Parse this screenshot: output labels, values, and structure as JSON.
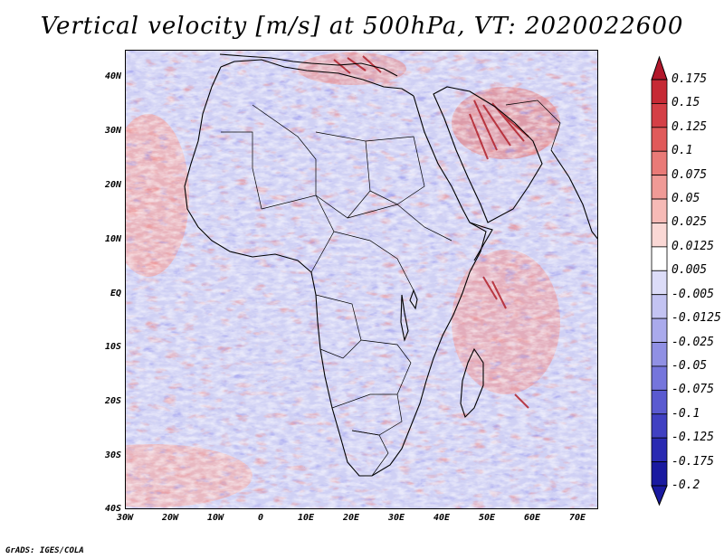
{
  "title": "Vertical velocity [m/s] at 500hPa, VT: 2020022600",
  "credit": "GrADS: IGES/COLA",
  "map": {
    "region": "Africa",
    "lon_range": [
      -30,
      75
    ],
    "lat_range": [
      -40,
      45
    ],
    "lat_labels": [
      "40N",
      "30N",
      "20N",
      "10N",
      "EQ",
      "10S",
      "20S",
      "30S",
      "40S"
    ],
    "lon_labels": [
      "30W",
      "20W",
      "10W",
      "0",
      "10E",
      "20E",
      "30E",
      "40E",
      "50E",
      "60E",
      "70E"
    ]
  },
  "colorbar": {
    "labels": [
      "0.175",
      "0.15",
      "0.125",
      "0.1",
      "0.075",
      "0.05",
      "0.025",
      "0.0125",
      "0.005",
      "-0.005",
      "-0.0125",
      "-0.025",
      "-0.05",
      "-0.075",
      "-0.1",
      "-0.125",
      "-0.175",
      "-0.2"
    ],
    "colors": [
      "#b2182b",
      "#c62a35",
      "#d43f46",
      "#e05a5a",
      "#e97a77",
      "#f09a96",
      "#f6bab6",
      "#fad8d5",
      "#ffffff",
      "#dcdcf8",
      "#c3c3f2",
      "#aaaaec",
      "#9090e4",
      "#7575dc",
      "#5a5ad0",
      "#4040c2",
      "#2a2ab2",
      "#1a1aa0"
    ]
  }
}
